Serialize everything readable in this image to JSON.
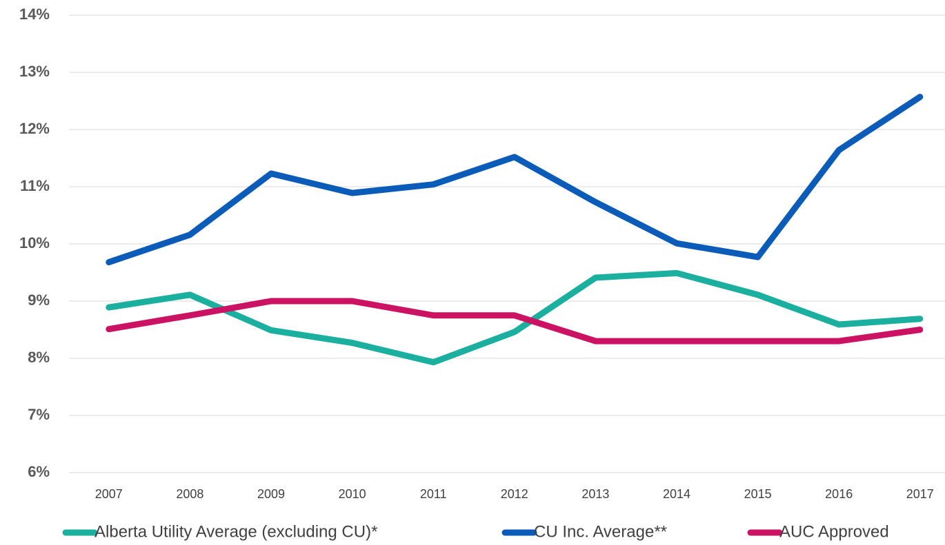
{
  "chart_data": {
    "type": "line",
    "categories": [
      "2007",
      "2008",
      "2009",
      "2010",
      "2011",
      "2012",
      "2013",
      "2014",
      "2015",
      "2016",
      "2017"
    ],
    "series": [
      {
        "name": "Alberta Utility Average (excluding CU)*",
        "color": "#1aaf9f",
        "values": [
          8.89,
          9.11,
          8.49,
          8.27,
          7.93,
          8.46,
          9.41,
          9.49,
          9.11,
          8.59,
          8.69
        ]
      },
      {
        "name": "CU Inc. Average**",
        "color": "#0b5cb8",
        "values": [
          9.68,
          10.16,
          11.23,
          10.89,
          11.04,
          11.52,
          10.73,
          10.01,
          9.77,
          11.64,
          12.57
        ]
      },
      {
        "name": "AUC Approved",
        "color": "#cc1262",
        "values": [
          8.51,
          8.75,
          9.0,
          9.0,
          8.75,
          8.75,
          8.3,
          8.3,
          8.3,
          8.3,
          8.5
        ]
      }
    ],
    "ylim": [
      6,
      14
    ],
    "yticks": [
      {
        "value": 6,
        "label": "6%"
      },
      {
        "value": 7,
        "label": "7%"
      },
      {
        "value": 8,
        "label": "8%"
      },
      {
        "value": 9,
        "label": "9%"
      },
      {
        "value": 10,
        "label": "10%"
      },
      {
        "value": 11,
        "label": "11%"
      },
      {
        "value": 12,
        "label": "12%"
      },
      {
        "value": 13,
        "label": "13%"
      },
      {
        "value": 14,
        "label": "14%"
      }
    ],
    "grid": true,
    "legend": "bottom"
  }
}
